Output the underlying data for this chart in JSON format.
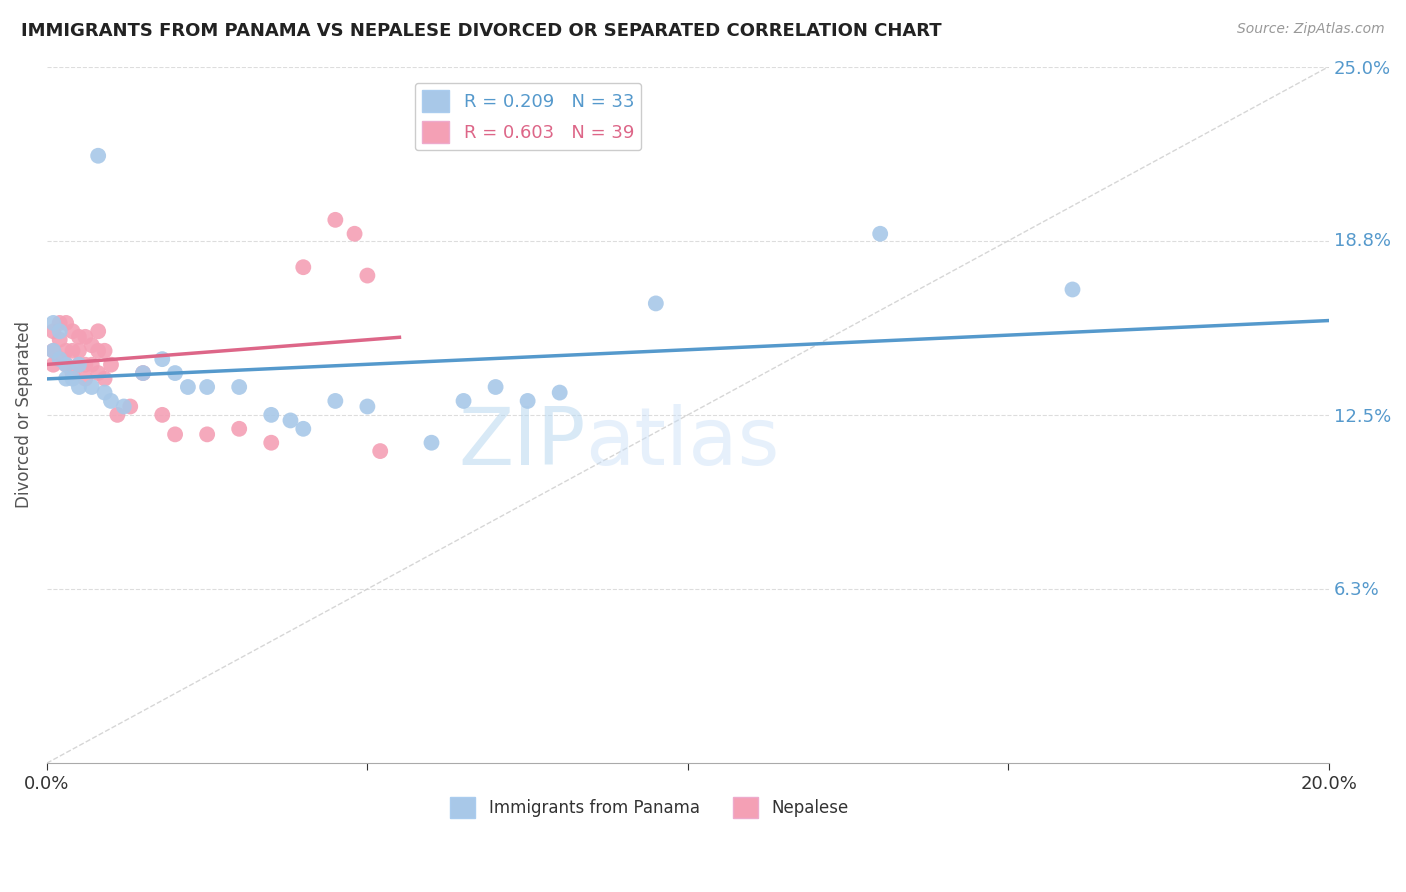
{
  "title": "IMMIGRANTS FROM PANAMA VS NEPALESE DIVORCED OR SEPARATED CORRELATION CHART",
  "source": "Source: ZipAtlas.com",
  "ylabel": "Divorced or Separated",
  "watermark_zip": "ZIP",
  "watermark_atlas": "atlas",
  "xlim": [
    0.0,
    0.2
  ],
  "ylim": [
    0.0,
    0.25
  ],
  "ytick_labels_right": [
    "25.0%",
    "18.8%",
    "12.5%",
    "6.3%"
  ],
  "ytick_positions_right": [
    0.25,
    0.188,
    0.125,
    0.063
  ],
  "blue_R": 0.209,
  "blue_N": 33,
  "pink_R": 0.603,
  "pink_N": 39,
  "blue_color": "#a8c8e8",
  "pink_color": "#f4a0b5",
  "blue_line_color": "#5599cc",
  "pink_line_color": "#dd6688",
  "blue_label": "Immigrants from Panama",
  "pink_label": "Nepalese",
  "blue_points_x": [
    0.008,
    0.001,
    0.002,
    0.001,
    0.002,
    0.003,
    0.005,
    0.003,
    0.004,
    0.005,
    0.007,
    0.009,
    0.01,
    0.012,
    0.015,
    0.018,
    0.02,
    0.022,
    0.025,
    0.03,
    0.035,
    0.038,
    0.04,
    0.045,
    0.05,
    0.06,
    0.065,
    0.07,
    0.075,
    0.08,
    0.095,
    0.13,
    0.16
  ],
  "blue_points_y": [
    0.218,
    0.158,
    0.155,
    0.148,
    0.145,
    0.143,
    0.143,
    0.138,
    0.138,
    0.135,
    0.135,
    0.133,
    0.13,
    0.128,
    0.14,
    0.145,
    0.14,
    0.135,
    0.135,
    0.135,
    0.125,
    0.123,
    0.12,
    0.13,
    0.128,
    0.115,
    0.13,
    0.135,
    0.13,
    0.133,
    0.165,
    0.19,
    0.17
  ],
  "pink_points_x": [
    0.001,
    0.001,
    0.001,
    0.002,
    0.002,
    0.002,
    0.003,
    0.003,
    0.003,
    0.004,
    0.004,
    0.004,
    0.005,
    0.005,
    0.005,
    0.006,
    0.006,
    0.006,
    0.007,
    0.007,
    0.008,
    0.008,
    0.008,
    0.009,
    0.009,
    0.01,
    0.011,
    0.013,
    0.015,
    0.018,
    0.02,
    0.025,
    0.03,
    0.035,
    0.04,
    0.045,
    0.048,
    0.05,
    0.052
  ],
  "pink_points_y": [
    0.155,
    0.148,
    0.143,
    0.158,
    0.152,
    0.145,
    0.158,
    0.148,
    0.143,
    0.155,
    0.148,
    0.14,
    0.153,
    0.148,
    0.143,
    0.153,
    0.143,
    0.138,
    0.15,
    0.143,
    0.155,
    0.148,
    0.14,
    0.148,
    0.138,
    0.143,
    0.125,
    0.128,
    0.14,
    0.125,
    0.118,
    0.118,
    0.12,
    0.115,
    0.178,
    0.195,
    0.19,
    0.175,
    0.112
  ],
  "grid_color": "#dddddd",
  "background_color": "#ffffff",
  "diagonal_line_color": "#cccccc"
}
